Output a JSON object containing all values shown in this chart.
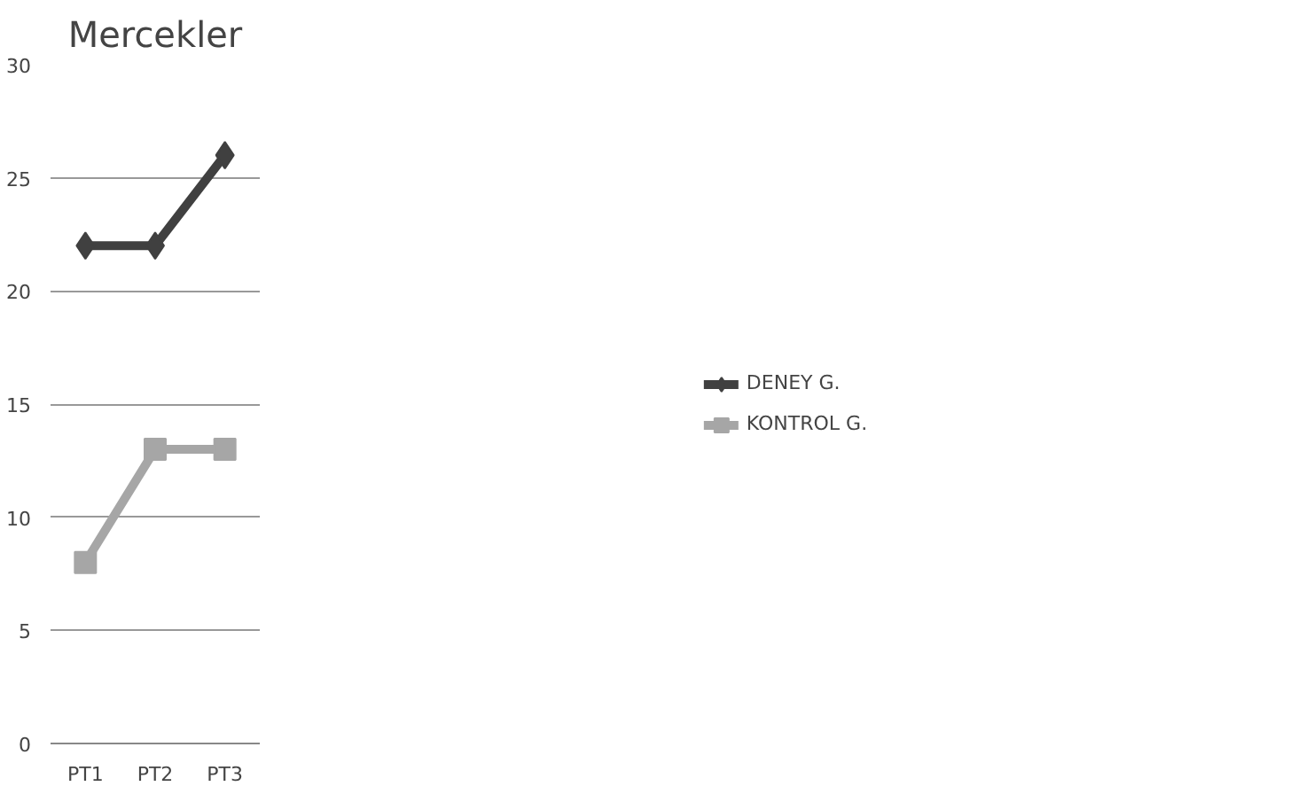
{
  "chart_data": {
    "type": "line",
    "title": "Mercekler",
    "categories": [
      "PT1",
      "PT2",
      "PT3"
    ],
    "series": [
      {
        "name": "DENEY G.",
        "color": "#404040",
        "marker": "diamond",
        "values": [
          22,
          22,
          26
        ]
      },
      {
        "name": "KONTROL G.",
        "color": "#a6a6a6",
        "marker": "square",
        "values": [
          8,
          13,
          13
        ]
      }
    ],
    "ylim": [
      0,
      30
    ],
    "yticks": [
      0,
      5,
      10,
      15,
      20,
      25,
      30
    ],
    "grid": "y",
    "legend": "right",
    "line_style": "solid"
  }
}
